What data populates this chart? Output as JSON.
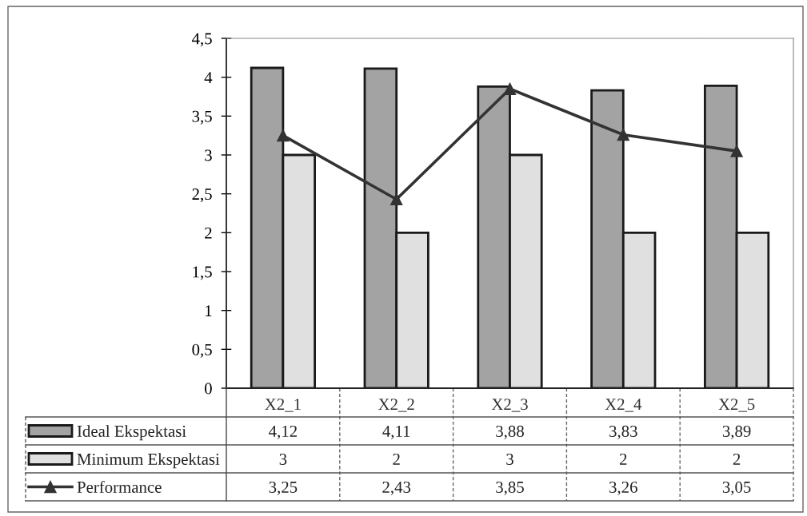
{
  "chart_data": {
    "type": "bar",
    "categories": [
      "X2_1",
      "X2_2",
      "X2_3",
      "X2_4",
      "X2_5"
    ],
    "series": [
      {
        "name": "Ideal Ekspektasi",
        "color": "#a3a3a3",
        "values": [
          4.12,
          4.11,
          3.88,
          3.83,
          3.89
        ],
        "value_labels": [
          "4,12",
          "4,11",
          "3,88",
          "3,83",
          "3,89"
        ]
      },
      {
        "name": "Minimum Ekspektasi",
        "color": "#e0e0e0",
        "values": [
          3,
          2,
          3,
          2,
          2
        ],
        "value_labels": [
          "3",
          "2",
          "3",
          "2",
          "2"
        ]
      },
      {
        "name": "Performance",
        "type": "line",
        "color": "#333333",
        "marker": "triangle",
        "line_style": "solid",
        "values": [
          3.25,
          2.43,
          3.85,
          3.26,
          3.05
        ],
        "value_labels": [
          "3,25",
          "2,43",
          "3,85",
          "3,26",
          "3,05"
        ]
      }
    ],
    "ylim": [
      0,
      4.5
    ],
    "yticks": [
      0,
      {
        "value": 0.5,
        "label": "0,5"
      },
      1,
      {
        "value": 1.5,
        "label": "1,5"
      },
      2,
      {
        "value": 2.5,
        "label": "2,5"
      },
      3,
      {
        "value": 3.5,
        "label": "3,5"
      },
      4,
      {
        "value": 4.5,
        "label": "4,5"
      }
    ],
    "legend": "bottom"
  }
}
